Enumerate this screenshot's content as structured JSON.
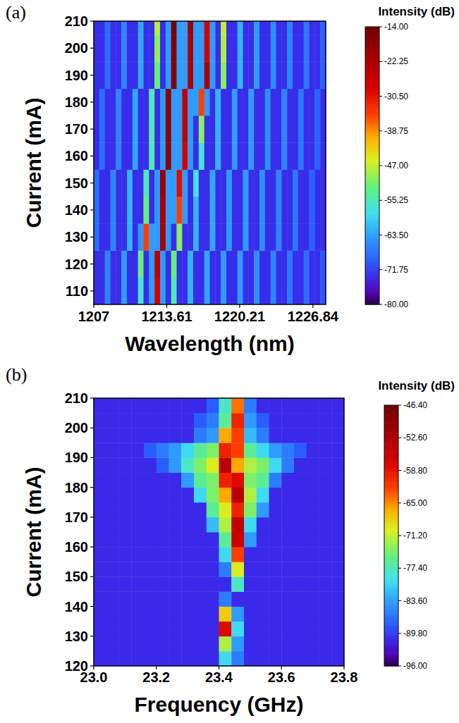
{
  "chart_data": [
    {
      "type": "heatmap",
      "title": "(a)",
      "x_label": "Wavelength (nm)",
      "y_label": "Current (mA)",
      "xlim": [
        1207,
        1228
      ],
      "ylim": [
        105,
        210
      ],
      "xticks": [
        1207,
        1213.61,
        1220.21,
        1226.84
      ],
      "yticks": [
        110,
        120,
        130,
        140,
        150,
        160,
        170,
        180,
        190,
        200,
        210
      ],
      "x": [
        1207.25,
        1207.75,
        1208.25,
        1208.75,
        1209.25,
        1209.75,
        1210.25,
        1210.75,
        1211.25,
        1211.75,
        1212.25,
        1212.75,
        1213.25,
        1213.75,
        1214.25,
        1214.75,
        1215.25,
        1215.75,
        1216.25,
        1216.75,
        1217.25,
        1217.75,
        1218.25,
        1218.75,
        1219.25,
        1219.75,
        1220.25,
        1220.75,
        1221.25,
        1221.75,
        1222.25,
        1222.75,
        1223.25,
        1223.75,
        1224.25,
        1224.75,
        1225.25,
        1225.75,
        1226.25,
        1226.75,
        1227.25,
        1227.75
      ],
      "y": [
        110,
        120,
        130,
        140,
        150,
        160,
        170,
        180,
        190,
        200,
        210
      ],
      "z": [
        [
          -73,
          -73,
          -66,
          -73,
          -73,
          -64,
          -73,
          -73,
          -57,
          -73,
          -64,
          -28,
          -64,
          -73,
          -55,
          -73,
          -73,
          -62,
          -73,
          -73,
          -63,
          -73,
          -73,
          -64,
          -73,
          -73,
          -64,
          -73,
          -73,
          -65,
          -73,
          -73,
          -66,
          -73,
          -73,
          -67,
          -73,
          -73,
          -68,
          -73,
          -73,
          -70
        ],
        [
          -73,
          -73,
          -66,
          -73,
          -73,
          -64,
          -73,
          -73,
          -52,
          -73,
          -64,
          -25,
          -64,
          -73,
          -52,
          -73,
          -73,
          -62,
          -73,
          -73,
          -63,
          -73,
          -73,
          -64,
          -73,
          -73,
          -64,
          -73,
          -73,
          -65,
          -73,
          -73,
          -66,
          -73,
          -73,
          -67,
          -73,
          -73,
          -68,
          -73,
          -73,
          -70
        ],
        [
          -68,
          -73,
          -73,
          -66,
          -73,
          -73,
          -62,
          -73,
          -64,
          -35,
          -64,
          -64,
          -22,
          -64,
          -73,
          -50,
          -73,
          -73,
          -62,
          -73,
          -73,
          -63,
          -73,
          -73,
          -64,
          -73,
          -73,
          -64,
          -73,
          -73,
          -65,
          -73,
          -73,
          -66,
          -73,
          -73,
          -67,
          -73,
          -73,
          -69,
          -73,
          -73
        ],
        [
          -68,
          -73,
          -73,
          -66,
          -73,
          -73,
          -62,
          -73,
          -73,
          -52,
          -73,
          -64,
          -22,
          -64,
          -64,
          -35,
          -64,
          -73,
          -62,
          -73,
          -73,
          -63,
          -73,
          -73,
          -64,
          -73,
          -73,
          -64,
          -73,
          -73,
          -65,
          -73,
          -73,
          -66,
          -73,
          -73,
          -67,
          -73,
          -73,
          -69,
          -73,
          -73
        ],
        [
          -68,
          -73,
          -73,
          -66,
          -73,
          -73,
          -62,
          -73,
          -73,
          -55,
          -73,
          -64,
          -20,
          -64,
          -64,
          -30,
          -64,
          -73,
          -58,
          -73,
          -73,
          -63,
          -73,
          -73,
          -64,
          -73,
          -73,
          -64,
          -73,
          -73,
          -65,
          -73,
          -73,
          -66,
          -73,
          -73,
          -67,
          -73,
          -73,
          -69,
          -73,
          -73
        ],
        [
          -73,
          -68,
          -73,
          -73,
          -66,
          -73,
          -73,
          -63,
          -73,
          -73,
          -55,
          -73,
          -64,
          -18,
          -64,
          -64,
          -28,
          -64,
          -73,
          -57,
          -73,
          -73,
          -62,
          -73,
          -73,
          -64,
          -73,
          -73,
          -64,
          -73,
          -73,
          -65,
          -73,
          -73,
          -66,
          -73,
          -73,
          -67,
          -73,
          -73,
          -69,
          -73
        ],
        [
          -73,
          -68,
          -73,
          -73,
          -66,
          -73,
          -73,
          -63,
          -73,
          -73,
          -55,
          -73,
          -64,
          -18,
          -64,
          -64,
          -25,
          -64,
          -73,
          -50,
          -73,
          -73,
          -62,
          -73,
          -73,
          -64,
          -73,
          -73,
          -64,
          -73,
          -73,
          -65,
          -73,
          -73,
          -66,
          -73,
          -73,
          -67,
          -73,
          -73,
          -69,
          -73
        ],
        [
          -73,
          -68,
          -73,
          -73,
          -66,
          -73,
          -73,
          -63,
          -73,
          -73,
          -55,
          -73,
          -64,
          -18,
          -64,
          -64,
          -25,
          -64,
          -64,
          -35,
          -64,
          -73,
          -62,
          -73,
          -73,
          -64,
          -73,
          -73,
          -64,
          -73,
          -73,
          -65,
          -73,
          -73,
          -66,
          -73,
          -73,
          -67,
          -73,
          -73,
          -69,
          -73
        ],
        [
          -73,
          -73,
          -68,
          -73,
          -73,
          -66,
          -73,
          -73,
          -63,
          -73,
          -73,
          -52,
          -73,
          -64,
          -16,
          -64,
          -64,
          -22,
          -64,
          -64,
          -22,
          -64,
          -73,
          -50,
          -73,
          -73,
          -62,
          -73,
          -73,
          -64,
          -73,
          -73,
          -65,
          -73,
          -73,
          -66,
          -73,
          -73,
          -67,
          -73,
          -73,
          -69
        ],
        [
          -73,
          -73,
          -68,
          -73,
          -73,
          -66,
          -73,
          -73,
          -63,
          -73,
          -73,
          -50,
          -73,
          -64,
          -16,
          -64,
          -64,
          -22,
          -64,
          -64,
          -28,
          -64,
          -73,
          -48,
          -73,
          -73,
          -62,
          -73,
          -73,
          -64,
          -73,
          -73,
          -65,
          -73,
          -73,
          -66,
          -73,
          -73,
          -67,
          -73,
          -73,
          -69
        ],
        [
          -73,
          -73,
          -68,
          -73,
          -73,
          -66,
          -73,
          -73,
          -63,
          -73,
          -73,
          -48,
          -73,
          -64,
          -15,
          -64,
          -64,
          -20,
          -64,
          -64,
          -28,
          -64,
          -73,
          -47,
          -73,
          -73,
          -62,
          -73,
          -73,
          -64,
          -73,
          -73,
          -65,
          -73,
          -73,
          -66,
          -73,
          -73,
          -67,
          -73,
          -73,
          -69
        ]
      ],
      "colorbar": {
        "label": "Intensity (dB)",
        "range": [
          -80,
          -14
        ],
        "ticks": [
          {
            "value": -14,
            "label": "-14.00"
          },
          -22.25,
          {
            "value": -30.5,
            "label": "-30.50"
          },
          -38.75,
          {
            "value": -47,
            "label": "-47.00"
          },
          -55.25,
          {
            "value": -63.5,
            "label": "-63.50"
          },
          -71.75,
          {
            "value": -80,
            "label": "-80.00"
          }
        ]
      }
    },
    {
      "type": "heatmap",
      "title": "(b)",
      "x_label": "Frequency (GHz)",
      "y_label": "Current (mA)",
      "xlim": [
        23.0,
        23.8
      ],
      "ylim": [
        120,
        210
      ],
      "xticks": [
        {
          "value": 23,
          "label": "23.0"
        },
        23.2,
        23.4,
        23.6,
        23.8
      ],
      "yticks": [
        120,
        130,
        140,
        150,
        160,
        170,
        180,
        190,
        200,
        210
      ],
      "x": [
        23.02,
        23.06,
        23.1,
        23.14,
        23.18,
        23.22,
        23.26,
        23.3,
        23.34,
        23.38,
        23.42,
        23.46,
        23.5,
        23.54,
        23.58,
        23.62,
        23.66,
        23.7,
        23.74,
        23.78
      ],
      "y": [
        122.5,
        127.5,
        132.5,
        137.5,
        142.5,
        147.5,
        152.5,
        157.5,
        162.5,
        167.5,
        172.5,
        177.5,
        182.5,
        187.5,
        192.5,
        197.5,
        202.5,
        207.5
      ],
      "z": [
        [
          -91,
          -91,
          -91,
          -91,
          -91,
          -91,
          -91,
          -91,
          -91,
          -91,
          -80,
          -86,
          -91,
          -91,
          -91,
          -91,
          -91,
          -91,
          -91,
          -91
        ],
        [
          -91,
          -91,
          -91,
          -91,
          -91,
          -91,
          -91,
          -91,
          -91,
          -91,
          -72,
          -84,
          -91,
          -91,
          -91,
          -91,
          -91,
          -91,
          -91,
          -91
        ],
        [
          -91,
          -91,
          -91,
          -91,
          -91,
          -91,
          -91,
          -91,
          -91,
          -91,
          -58,
          -80,
          -91,
          -91,
          -91,
          -91,
          -91,
          -91,
          -91,
          -91
        ],
        [
          -91,
          -91,
          -91,
          -91,
          -91,
          -91,
          -91,
          -91,
          -91,
          -91,
          -68,
          -84,
          -91,
          -91,
          -91,
          -91,
          -91,
          -91,
          -91,
          -91
        ],
        [
          -91,
          -91,
          -91,
          -91,
          -91,
          -91,
          -91,
          -91,
          -91,
          -91,
          -86,
          -91,
          -91,
          -91,
          -91,
          -91,
          -91,
          -91,
          -91,
          -91
        ],
        [
          -91,
          -91,
          -91,
          -91,
          -91,
          -91,
          -91,
          -91,
          -91,
          -91,
          -91,
          -78,
          -91,
          -91,
          -91,
          -91,
          -91,
          -91,
          -91,
          -91
        ],
        [
          -91,
          -91,
          -91,
          -91,
          -91,
          -91,
          -91,
          -91,
          -91,
          -91,
          -86,
          -70,
          -91,
          -91,
          -91,
          -91,
          -91,
          -91,
          -91,
          -91
        ],
        [
          -91,
          -91,
          -91,
          -91,
          -91,
          -91,
          -91,
          -91,
          -91,
          -91,
          -80,
          -62,
          -91,
          -91,
          -91,
          -91,
          -91,
          -91,
          -91,
          -91
        ],
        [
          -91,
          -91,
          -91,
          -91,
          -91,
          -91,
          -91,
          -91,
          -91,
          -91,
          -76,
          -56,
          -84,
          -91,
          -91,
          -91,
          -91,
          -91,
          -91,
          -91
        ],
        [
          -91,
          -91,
          -91,
          -91,
          -91,
          -91,
          -91,
          -91,
          -91,
          -82,
          -72,
          -55,
          -80,
          -91,
          -91,
          -91,
          -91,
          -91,
          -91,
          -91
        ],
        [
          -91,
          -91,
          -91,
          -91,
          -91,
          -91,
          -91,
          -91,
          -91,
          -76,
          -70,
          -60,
          -74,
          -84,
          -91,
          -91,
          -91,
          -91,
          -91,
          -91
        ],
        [
          -91,
          -91,
          -91,
          -91,
          -91,
          -91,
          -91,
          -91,
          -80,
          -74,
          -66,
          -54,
          -72,
          -80,
          -91,
          -91,
          -91,
          -91,
          -91,
          -91
        ],
        [
          -91,
          -91,
          -91,
          -91,
          -91,
          -91,
          -91,
          -84,
          -76,
          -74,
          -60,
          -58,
          -74,
          -76,
          -86,
          -91,
          -91,
          -91,
          -91,
          -91
        ],
        [
          -91,
          -91,
          -91,
          -91,
          -91,
          -88,
          -84,
          -78,
          -74,
          -70,
          -54,
          -66,
          -72,
          -74,
          -80,
          -86,
          -91,
          -91,
          -91,
          -91
        ],
        [
          -91,
          -91,
          -91,
          -91,
          -88,
          -86,
          -84,
          -80,
          -76,
          -74,
          -60,
          -62,
          -76,
          -80,
          -84,
          -86,
          -88,
          -91,
          -91,
          -91
        ],
        [
          -91,
          -91,
          -91,
          -91,
          -91,
          -91,
          -91,
          -91,
          -86,
          -84,
          -66,
          -62,
          -82,
          -86,
          -91,
          -91,
          -91,
          -91,
          -91,
          -91
        ],
        [
          -91,
          -91,
          -91,
          -91,
          -91,
          -91,
          -91,
          -91,
          -88,
          -86,
          -76,
          -60,
          -84,
          -88,
          -91,
          -91,
          -91,
          -91,
          -91,
          -91
        ],
        [
          -91,
          -91,
          -91,
          -91,
          -91,
          -91,
          -91,
          -91,
          -91,
          -88,
          -78,
          -64,
          -86,
          -91,
          -91,
          -91,
          -91,
          -91,
          -91,
          -91
        ]
      ],
      "colorbar": {
        "label": "Intensity (dB)",
        "range": [
          -96,
          -46.4
        ],
        "ticks": [
          {
            "value": -46.4,
            "label": "-46.40"
          },
          {
            "value": -52.6,
            "label": "-52.60"
          },
          {
            "value": -58.8,
            "label": "-58.80"
          },
          {
            "value": -65,
            "label": "-65.00"
          },
          {
            "value": -71.2,
            "label": "-71.20"
          },
          {
            "value": -77.4,
            "label": "-77.40"
          },
          {
            "value": -83.6,
            "label": "-83.60"
          },
          {
            "value": -89.8,
            "label": "-89.80"
          },
          {
            "value": -96,
            "label": "-96.00"
          }
        ]
      }
    }
  ]
}
